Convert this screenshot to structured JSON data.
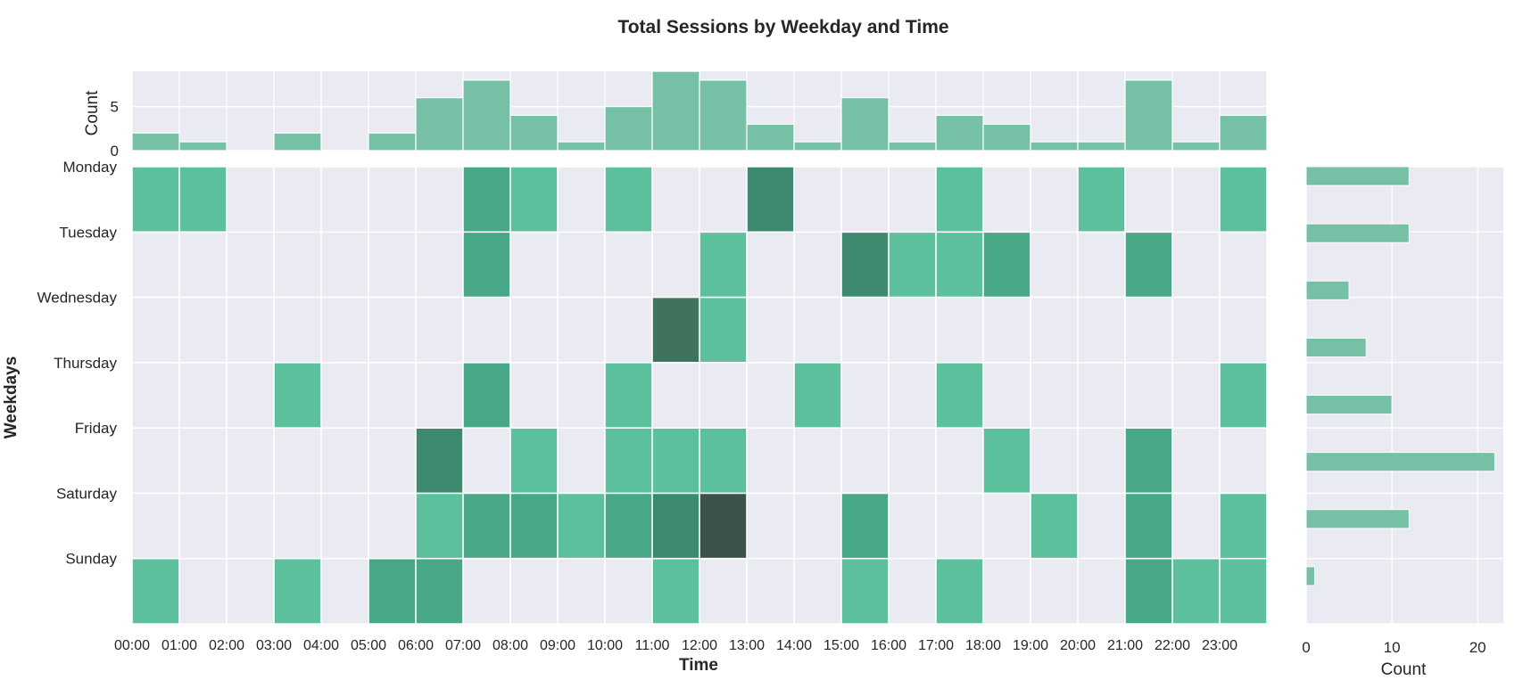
{
  "chart_data": {
    "type": "heatmap",
    "title": "Total Sessions by Weekday and Time",
    "xlabel": "Time",
    "ylabel": "Weekdays",
    "x_tick_labels": [
      "00:00",
      "01:00",
      "02:00",
      "03:00",
      "04:00",
      "05:00",
      "06:00",
      "07:00",
      "08:00",
      "09:00",
      "10:00",
      "11:00",
      "12:00",
      "13:00",
      "14:00",
      "15:00",
      "16:00",
      "17:00",
      "18:00",
      "19:00",
      "20:00",
      "21:00",
      "22:00",
      "23:00"
    ],
    "y_tick_labels": [
      "Monday",
      "Tuesday",
      "Wednesday",
      "Thursday",
      "Friday",
      "Saturday",
      "Sunday"
    ],
    "heatmap": {
      "rows": 7,
      "cols": 24,
      "values": [
        [
          1,
          1,
          0,
          0,
          0,
          0,
          0,
          2,
          1,
          0,
          1,
          0,
          0,
          3,
          0,
          0,
          0,
          1,
          0,
          0,
          1,
          0,
          0,
          1
        ],
        [
          0,
          0,
          0,
          0,
          0,
          0,
          0,
          2,
          0,
          0,
          0,
          0,
          1,
          0,
          0,
          3,
          1,
          1,
          2,
          0,
          0,
          2,
          0,
          0
        ],
        [
          0,
          0,
          0,
          0,
          0,
          0,
          0,
          0,
          0,
          0,
          0,
          4,
          1,
          0,
          0,
          0,
          0,
          0,
          0,
          0,
          0,
          0,
          0,
          0
        ],
        [
          0,
          0,
          0,
          1,
          0,
          0,
          0,
          2,
          0,
          0,
          1,
          0,
          0,
          0,
          1,
          0,
          0,
          1,
          0,
          0,
          0,
          0,
          0,
          1
        ],
        [
          0,
          0,
          0,
          0,
          0,
          0,
          3,
          0,
          1,
          0,
          1,
          1,
          1,
          0,
          0,
          0,
          0,
          0,
          1,
          0,
          0,
          2,
          0,
          0
        ],
        [
          0,
          0,
          0,
          0,
          0,
          0,
          1,
          2,
          2,
          1,
          2,
          3,
          5,
          0,
          0,
          2,
          0,
          0,
          0,
          1,
          0,
          2,
          0,
          1
        ],
        [
          1,
          0,
          0,
          1,
          0,
          2,
          2,
          0,
          0,
          0,
          0,
          1,
          0,
          0,
          0,
          1,
          0,
          1,
          0,
          0,
          0,
          2,
          1,
          1
        ]
      ]
    },
    "top_marginal": {
      "ylabel": "Count",
      "y_ticks": [
        0,
        5
      ],
      "ylim": [
        0,
        9
      ],
      "values": [
        2,
        1,
        0,
        2,
        0,
        2,
        6,
        8,
        4,
        1,
        5,
        9,
        8,
        3,
        1,
        6,
        1,
        4,
        3,
        1,
        1,
        8,
        1,
        4
      ]
    },
    "right_marginal": {
      "xlabel": "Count",
      "x_ticks": [
        0,
        10,
        20
      ],
      "xlim": [
        0,
        23
      ],
      "bins": 8,
      "values": [
        12,
        12,
        5,
        7,
        10,
        22,
        12,
        1
      ]
    },
    "grid": true,
    "colors": {
      "panel_background": "#eaeaf2",
      "grid": "#ffffff",
      "bar": "#76c0a6",
      "cell_scale": [
        "#5cc09c",
        "#47a787",
        "#3d8a70",
        "#41725e",
        "#3b5349"
      ]
    }
  }
}
